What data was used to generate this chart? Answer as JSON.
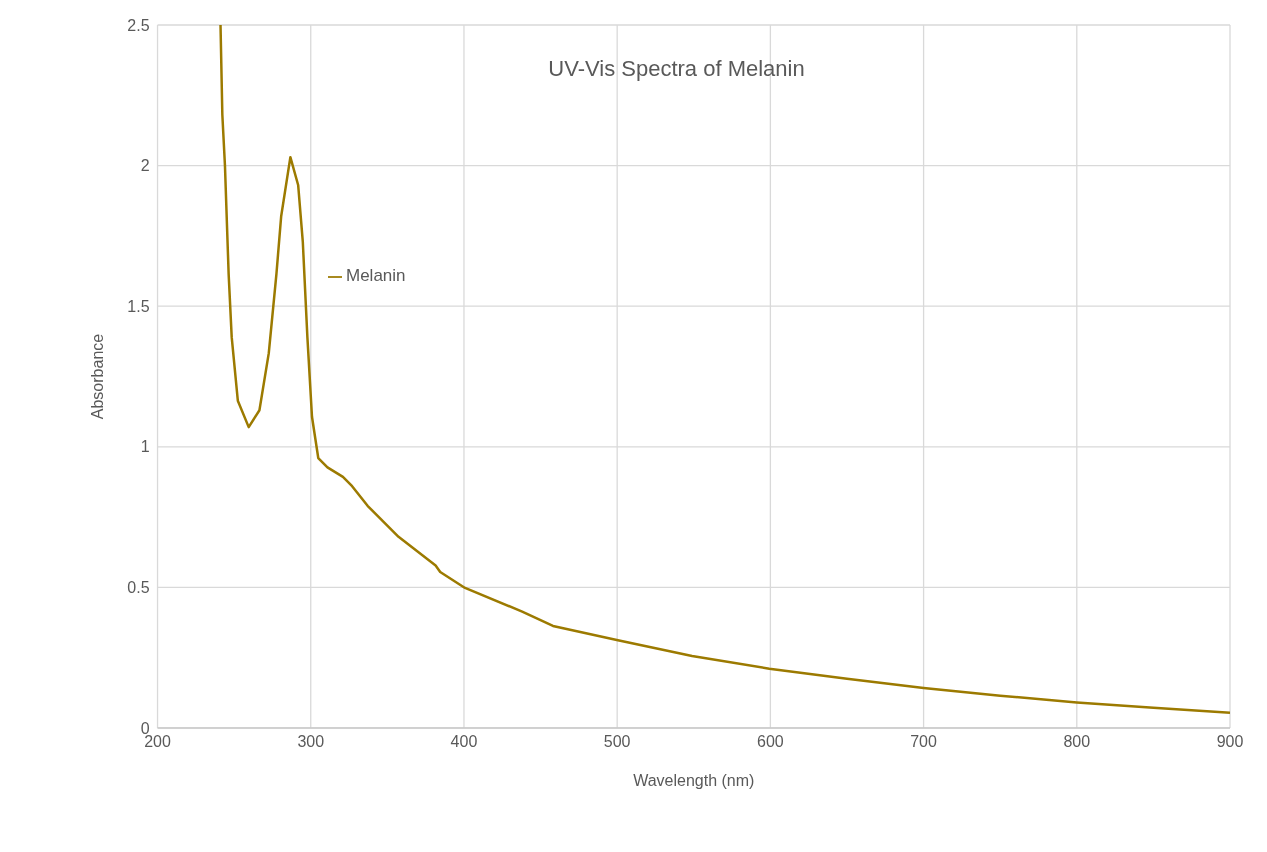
{
  "chart_data": {
    "type": "line",
    "title": "UV-Vis Spectra of Melanin",
    "xlabel": "Wavelength (nm)",
    "ylabel": "Absorbance",
    "series": [
      {
        "name": "Melanin",
        "color": "#9c7a00",
        "x": [
          241.1,
          242.3,
          244,
          246.4,
          248.4,
          252.4,
          259.5,
          266.5,
          272.6,
          277.6,
          280.7,
          286.7,
          291.8,
          294.8,
          297.8,
          300.8,
          304.9,
          310.9,
          321,
          327,
          337.1,
          357.3,
          381.5,
          384.5,
          400.7,
          438,
          458.1,
          500.5,
          548.9,
          599.3,
          650,
          700,
          750,
          800,
          850,
          900
        ],
        "values": [
          2.5,
          2.18,
          2.0,
          1.615,
          1.39,
          1.164,
          1.07,
          1.13,
          1.333,
          1.615,
          1.82,
          2.03,
          1.93,
          1.73,
          1.39,
          1.107,
          0.96,
          0.927,
          0.893,
          0.86,
          0.79,
          0.68,
          0.578,
          0.555,
          0.498,
          0.414,
          0.363,
          0.312,
          0.256,
          0.211,
          0.175,
          0.142,
          0.115,
          0.091,
          0.072,
          0.054
        ]
      }
    ],
    "xlim": [
      200,
      900
    ],
    "xticks": [
      200,
      300,
      400,
      500,
      600,
      700,
      800,
      900
    ],
    "ylim": [
      0,
      2.5
    ],
    "yticks": [
      0,
      0.5,
      1,
      1.5,
      2,
      2.5
    ],
    "grid": true,
    "legend": "top left",
    "marker": "none",
    "line_style": "solid"
  }
}
